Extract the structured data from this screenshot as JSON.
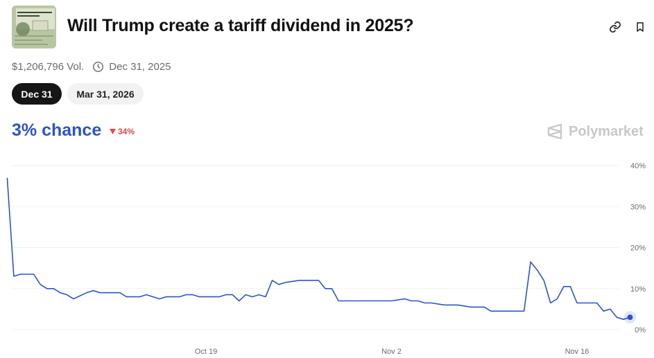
{
  "market": {
    "title": "Will Trump create a tariff dividend in 2025?",
    "volume": "$1,206,796 Vol.",
    "end_date": "Dec 31, 2025"
  },
  "icons": {
    "link": "link-icon",
    "bookmark": "bookmark-icon",
    "clock": "clock-icon",
    "thumbnail": "treasury-check-thumbnail",
    "brand_logo": "polymarket-logo-icon"
  },
  "date_tabs": [
    {
      "label": "Dec 31",
      "active": true
    },
    {
      "label": "Mar 31, 2026",
      "active": false
    }
  ],
  "odds": {
    "chance": "3% chance",
    "change": "34%",
    "change_direction": "down"
  },
  "brand": {
    "name": "Polymarket"
  },
  "colors": {
    "accent": "#2d54c4",
    "negative": "#e04848",
    "active_pill": "#161616",
    "inactive_pill": "#f2f2f2",
    "gridline": "#f1f1f1",
    "axis_text": "#6b6b6b"
  },
  "chart_data": {
    "type": "line",
    "x_ticks": [
      "Oct 19",
      "Nov 2",
      "Nov 16"
    ],
    "x_tick_dates": [
      "2025-10-19",
      "2025-11-02",
      "2025-11-16"
    ],
    "y_ticks": [
      "40%",
      "30%",
      "20%",
      "10%",
      "0%"
    ],
    "ylim": [
      0,
      40
    ],
    "grid": true,
    "series": [
      {
        "color": "#2d54c4",
        "points": [
          [
            "2025-10-04",
            37
          ],
          [
            "2025-10-04T12:00",
            13
          ],
          [
            "2025-10-05",
            13.5
          ],
          [
            "2025-10-06",
            13.5
          ],
          [
            "2025-10-06T12:00",
            11
          ],
          [
            "2025-10-07",
            10
          ],
          [
            "2025-10-07T12:00",
            10
          ],
          [
            "2025-10-08",
            9
          ],
          [
            "2025-10-08T12:00",
            8.5
          ],
          [
            "2025-10-09",
            7.5
          ],
          [
            "2025-10-10",
            9
          ],
          [
            "2025-10-10T12:00",
            9.5
          ],
          [
            "2025-10-11",
            9
          ],
          [
            "2025-10-12",
            9
          ],
          [
            "2025-10-12T12:00",
            9
          ],
          [
            "2025-10-13",
            8
          ],
          [
            "2025-10-14",
            8
          ],
          [
            "2025-10-14T12:00",
            8.5
          ],
          [
            "2025-10-15",
            8
          ],
          [
            "2025-10-15T12:00",
            7.5
          ],
          [
            "2025-10-16",
            8
          ],
          [
            "2025-10-17",
            8
          ],
          [
            "2025-10-17T12:00",
            8.5
          ],
          [
            "2025-10-18",
            8.5
          ],
          [
            "2025-10-18T12:00",
            8
          ],
          [
            "2025-10-19",
            8
          ],
          [
            "2025-10-20",
            8
          ],
          [
            "2025-10-20T12:00",
            8.5
          ],
          [
            "2025-10-21",
            8.5
          ],
          [
            "2025-10-21T12:00",
            7
          ],
          [
            "2025-10-22",
            8.5
          ],
          [
            "2025-10-22T12:00",
            8
          ],
          [
            "2025-10-23",
            8.5
          ],
          [
            "2025-10-23T12:00",
            8
          ],
          [
            "2025-10-24",
            12
          ],
          [
            "2025-10-24T12:00",
            11
          ],
          [
            "2025-10-25",
            11.5
          ],
          [
            "2025-10-26",
            12
          ],
          [
            "2025-10-27",
            12
          ],
          [
            "2025-10-27T12:00",
            12
          ],
          [
            "2025-10-28",
            10
          ],
          [
            "2025-10-28T12:00",
            10
          ],
          [
            "2025-10-29",
            7
          ],
          [
            "2025-10-30",
            7
          ],
          [
            "2025-10-31",
            7
          ],
          [
            "2025-11-01",
            7
          ],
          [
            "2025-11-02",
            7
          ],
          [
            "2025-11-03",
            7.5
          ],
          [
            "2025-11-03T12:00",
            7
          ],
          [
            "2025-11-04",
            7
          ],
          [
            "2025-11-04T12:00",
            6.5
          ],
          [
            "2025-11-05",
            6.5
          ],
          [
            "2025-11-06",
            6
          ],
          [
            "2025-11-07",
            6
          ],
          [
            "2025-11-08",
            5.5
          ],
          [
            "2025-11-09",
            5.5
          ],
          [
            "2025-11-09T12:00",
            4.5
          ],
          [
            "2025-11-10",
            4.5
          ],
          [
            "2025-11-11",
            4.5
          ],
          [
            "2025-11-12",
            4.5
          ],
          [
            "2025-11-12T12:00",
            16.5
          ],
          [
            "2025-11-13",
            14.5
          ],
          [
            "2025-11-13T12:00",
            12
          ],
          [
            "2025-11-14",
            6.5
          ],
          [
            "2025-11-14T12:00",
            7.5
          ],
          [
            "2025-11-15",
            10.5
          ],
          [
            "2025-11-15T12:00",
            10.5
          ],
          [
            "2025-11-16",
            6.5
          ],
          [
            "2025-11-17",
            6.5
          ],
          [
            "2025-11-17T12:00",
            6.5
          ],
          [
            "2025-11-18",
            4.5
          ],
          [
            "2025-11-18T12:00",
            5
          ],
          [
            "2025-11-19",
            3
          ],
          [
            "2025-11-19T12:00",
            2.5
          ],
          [
            "2025-11-20",
            3
          ]
        ]
      }
    ]
  }
}
